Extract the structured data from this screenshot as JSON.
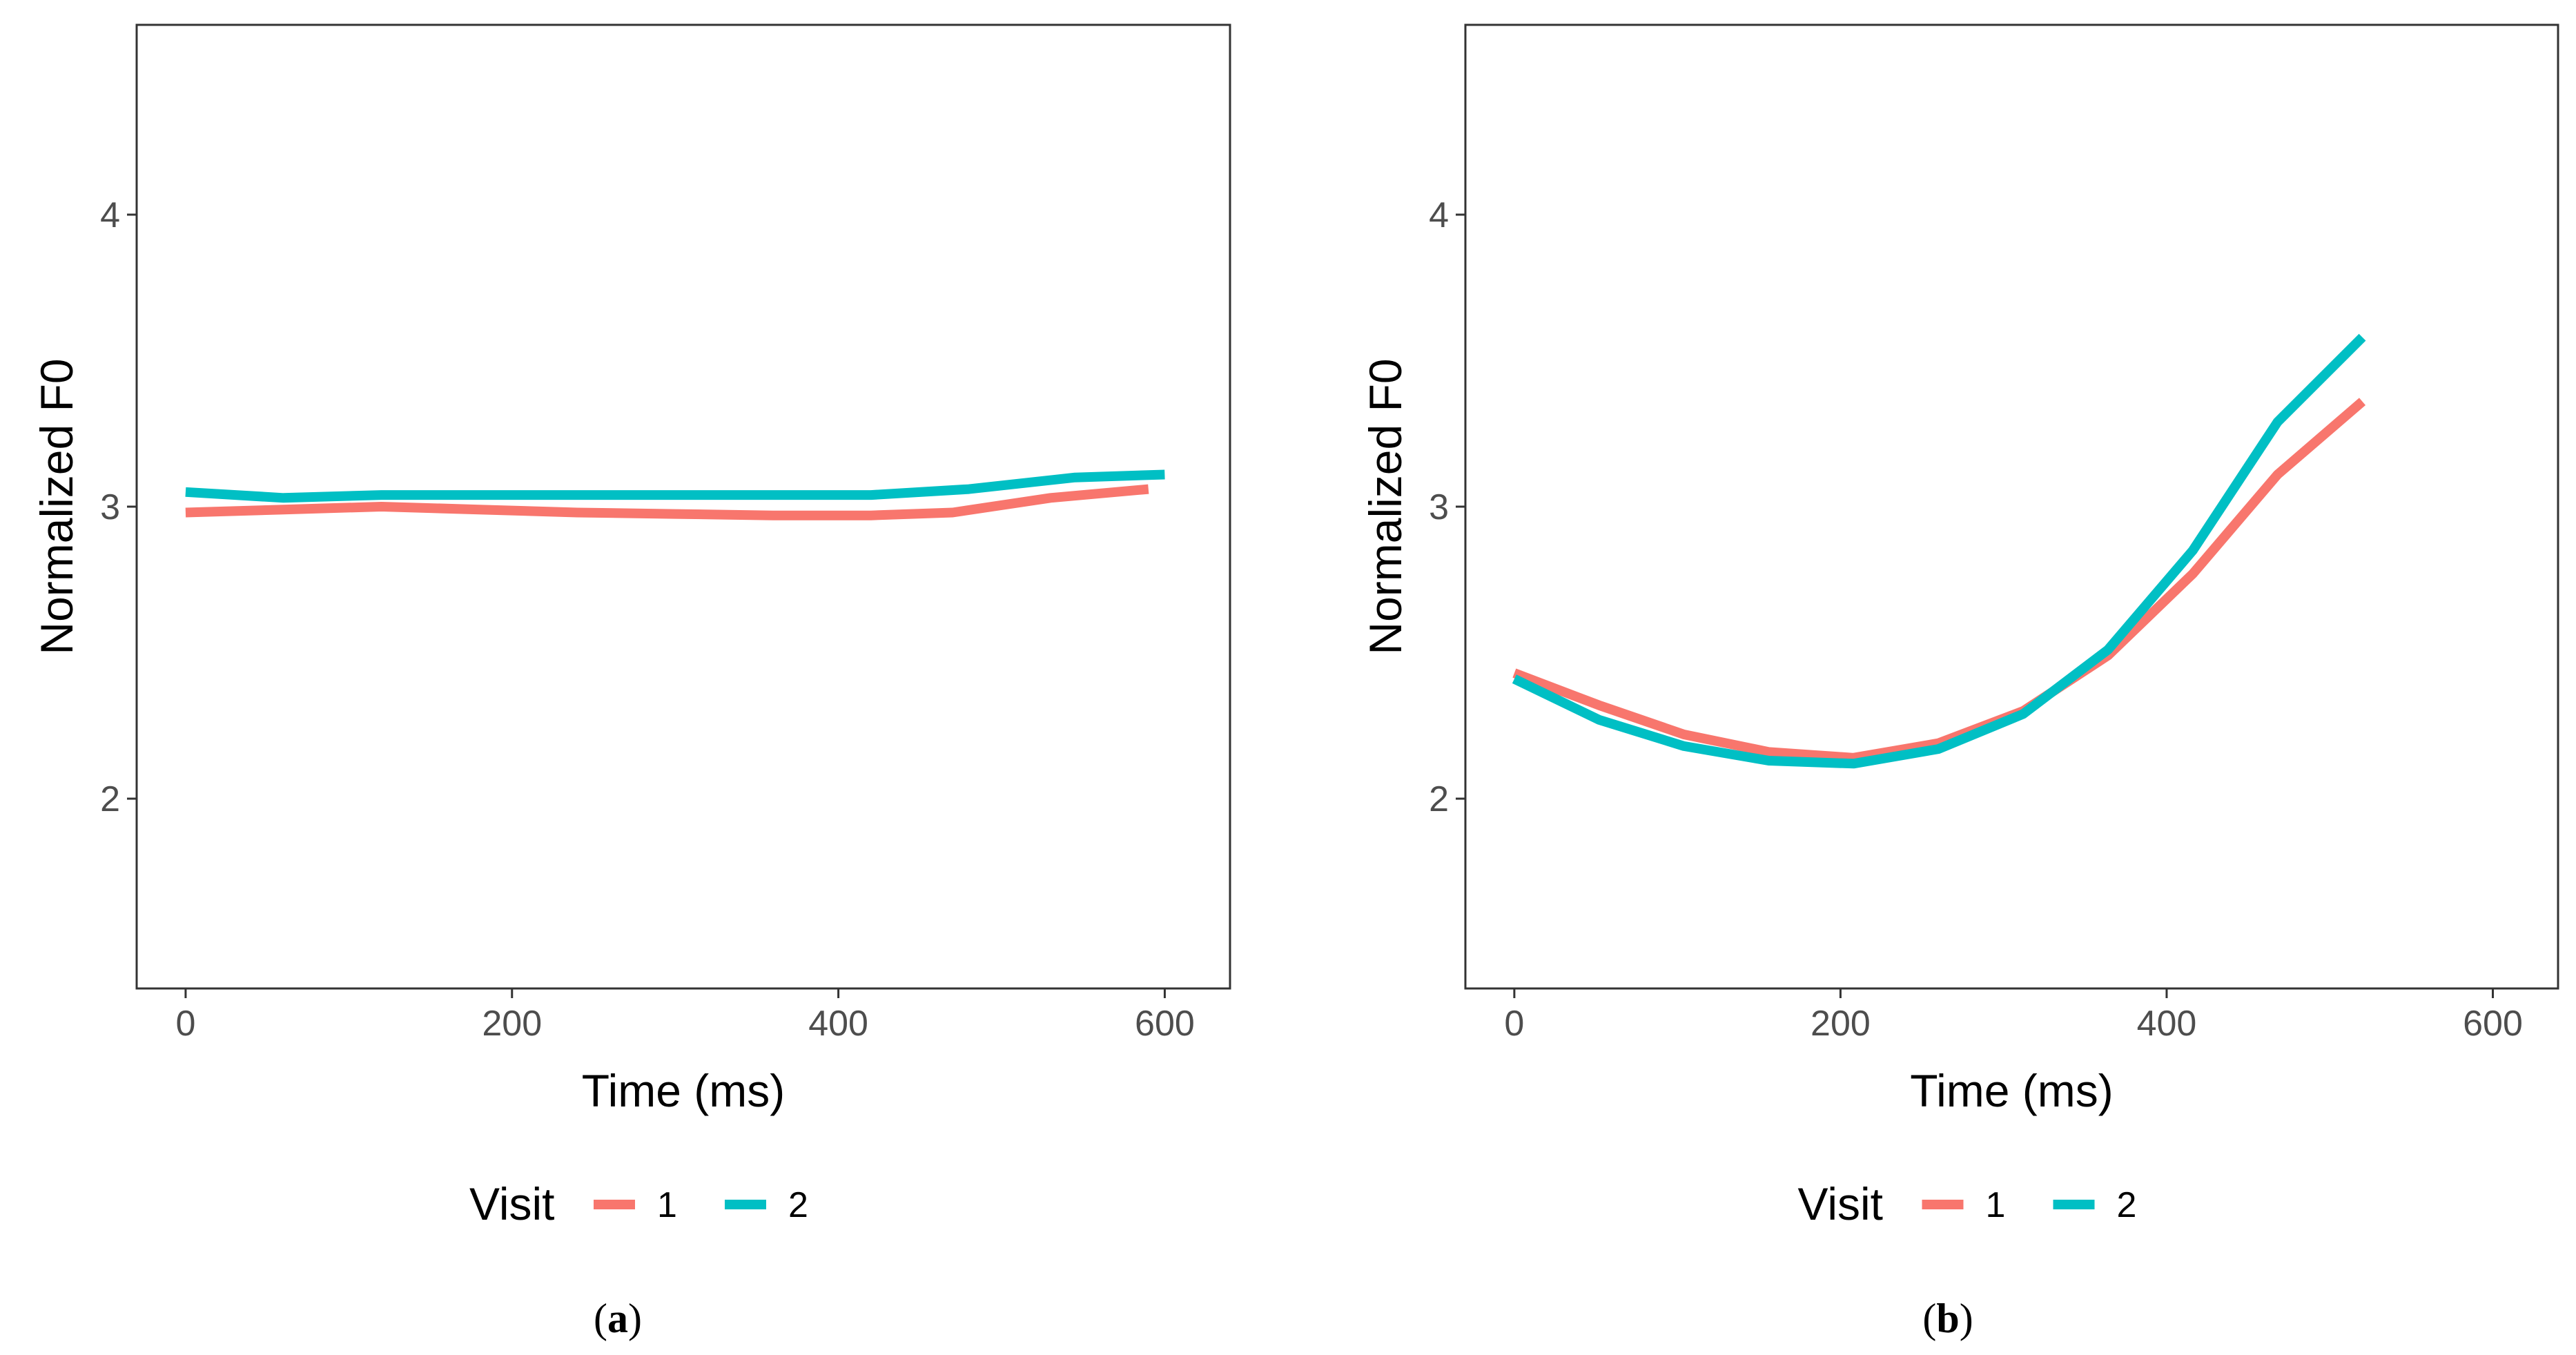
{
  "chart_data": [
    {
      "type": "line",
      "caption_letter": "a",
      "xlabel": "Time (ms)",
      "ylabel": "Normalized F0",
      "xlim": [
        -30,
        640
      ],
      "ylim": [
        1.35,
        4.65
      ],
      "xticks": [
        0,
        200,
        400,
        600
      ],
      "xtick_labels": [
        "0",
        "200",
        "400",
        "600"
      ],
      "yticks": [
        2,
        3,
        4
      ],
      "ytick_labels": [
        "2",
        "3",
        "4"
      ],
      "grid": false,
      "legend_title": "Visit",
      "legend_position": "bottom",
      "series": [
        {
          "name": "1",
          "color": "#F8766D",
          "x": [
            0,
            60,
            120,
            180,
            240,
            300,
            360,
            420,
            470,
            530,
            590
          ],
          "y": [
            2.98,
            2.99,
            3.0,
            2.99,
            2.98,
            2.975,
            2.97,
            2.97,
            2.98,
            3.03,
            3.06
          ]
        },
        {
          "name": "2",
          "color": "#00BFC4",
          "x": [
            0,
            60,
            120,
            180,
            240,
            300,
            360,
            420,
            480,
            545,
            600
          ],
          "y": [
            3.05,
            3.03,
            3.04,
            3.04,
            3.04,
            3.04,
            3.04,
            3.04,
            3.06,
            3.1,
            3.11
          ]
        }
      ]
    },
    {
      "type": "line",
      "caption_letter": "b",
      "xlabel": "Time (ms)",
      "ylabel": "Normalized F0",
      "xlim": [
        -30,
        640
      ],
      "ylim": [
        1.35,
        4.65
      ],
      "xticks": [
        0,
        200,
        400,
        600
      ],
      "xtick_labels": [
        "0",
        "200",
        "400",
        "600"
      ],
      "yticks": [
        2,
        3,
        4
      ],
      "ytick_labels": [
        "2",
        "3",
        "4"
      ],
      "grid": false,
      "legend_title": "Visit",
      "legend_position": "bottom",
      "series": [
        {
          "name": "1",
          "color": "#F8766D",
          "x": [
            0,
            52,
            104,
            156,
            208,
            260,
            312,
            364,
            416,
            468,
            520
          ],
          "y": [
            2.43,
            2.32,
            2.22,
            2.16,
            2.14,
            2.19,
            2.3,
            2.49,
            2.77,
            3.11,
            3.36
          ]
        },
        {
          "name": "2",
          "color": "#00BFC4",
          "x": [
            0,
            52,
            104,
            156,
            208,
            260,
            312,
            364,
            416,
            468,
            520
          ],
          "y": [
            2.41,
            2.27,
            2.18,
            2.13,
            2.12,
            2.17,
            2.29,
            2.51,
            2.85,
            3.29,
            3.58
          ]
        }
      ]
    }
  ]
}
